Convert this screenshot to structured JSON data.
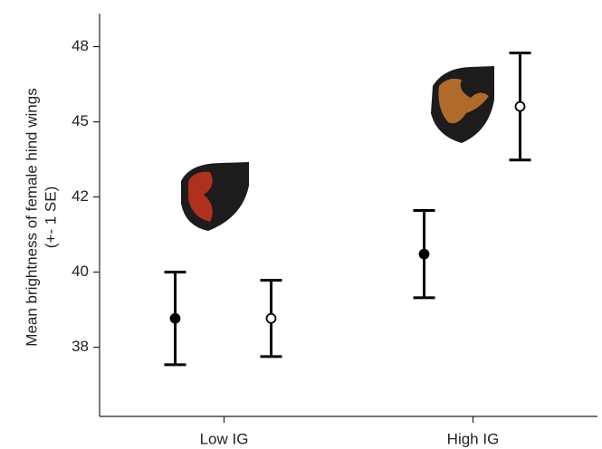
{
  "chart_data": {
    "type": "errorbar",
    "ylabel_lines": [
      "Mean brightness of female hind wings",
      "(+- 1 SE)"
    ],
    "categories": [
      "Low IG",
      "High IG"
    ],
    "series": [
      {
        "color": "#000000",
        "marker": "filled",
        "values": [
          38.46,
          40.6
        ],
        "errors": [
          1.54,
          1.45
        ]
      },
      {
        "color": "#000000",
        "marker": "open",
        "values": [
          38.46,
          45.51
        ],
        "errors": [
          1.27,
          1.78
        ]
      }
    ],
    "ylim": [
      35.2,
      48.6
    ],
    "yticks": [
      {
        "value": 37.5,
        "label": "38"
      },
      40,
      {
        "value": 42.5,
        "label": "42"
      },
      45,
      {
        "value": 47.5,
        "label": "48"
      }
    ]
  }
}
